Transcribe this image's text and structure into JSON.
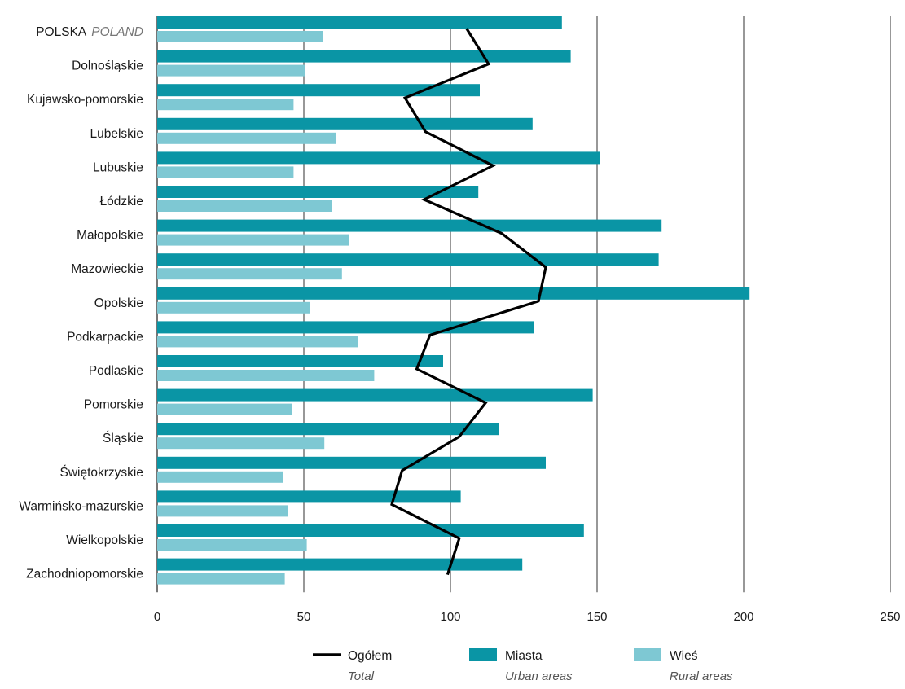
{
  "chart_data": {
    "type": "bar",
    "orientation": "horizontal",
    "title": "",
    "xlabel": "",
    "ylabel": "",
    "xlim": [
      0,
      250
    ],
    "x_ticks": [
      0,
      50,
      100,
      150,
      200,
      250
    ],
    "grid": "vertical",
    "legend_position": "bottom",
    "categories": [
      {
        "label": "POLSKA",
        "sublabel": "POLAND"
      },
      {
        "label": "Dolnośląskie"
      },
      {
        "label": "Kujawsko-pomorskie"
      },
      {
        "label": "Lubelskie"
      },
      {
        "label": "Lubuskie"
      },
      {
        "label": "Łódzkie"
      },
      {
        "label": "Małopolskie"
      },
      {
        "label": "Mazowieckie"
      },
      {
        "label": "Opolskie"
      },
      {
        "label": "Podkarpackie"
      },
      {
        "label": "Podlaskie"
      },
      {
        "label": "Pomorskie"
      },
      {
        "label": "Śląskie"
      },
      {
        "label": "Świętokrzyskie"
      },
      {
        "label": "Warmińsko-mazurskie"
      },
      {
        "label": "Wielkopolskie"
      },
      {
        "label": "Zachodniopomorskie"
      }
    ],
    "series": [
      {
        "name": "Miasta",
        "subname": "Urban areas",
        "kind": "bar",
        "color": "#0a95a5",
        "values": [
          138.0,
          141.0,
          110.0,
          128.0,
          151.0,
          109.5,
          172.0,
          171.0,
          202.0,
          128.5,
          97.5,
          148.5,
          116.5,
          132.5,
          103.5,
          145.5,
          124.5
        ]
      },
      {
        "name": "Wieś",
        "subname": "Rural areas",
        "kind": "bar",
        "color": "#7ec8d3",
        "values": [
          56.5,
          50.5,
          46.5,
          61.0,
          46.5,
          59.5,
          65.5,
          63.0,
          52.0,
          68.5,
          74.0,
          46.0,
          57.0,
          43.0,
          44.5,
          51.0,
          43.5
        ]
      },
      {
        "name": "Ogółem",
        "subname": "Total",
        "kind": "line",
        "color": "#000000",
        "values": [
          105.5,
          113.0,
          84.5,
          91.5,
          114.5,
          91.0,
          117.5,
          132.5,
          130.0,
          93.0,
          88.5,
          112.0,
          103.0,
          83.5,
          80.0,
          103.0,
          99.0
        ]
      }
    ]
  }
}
